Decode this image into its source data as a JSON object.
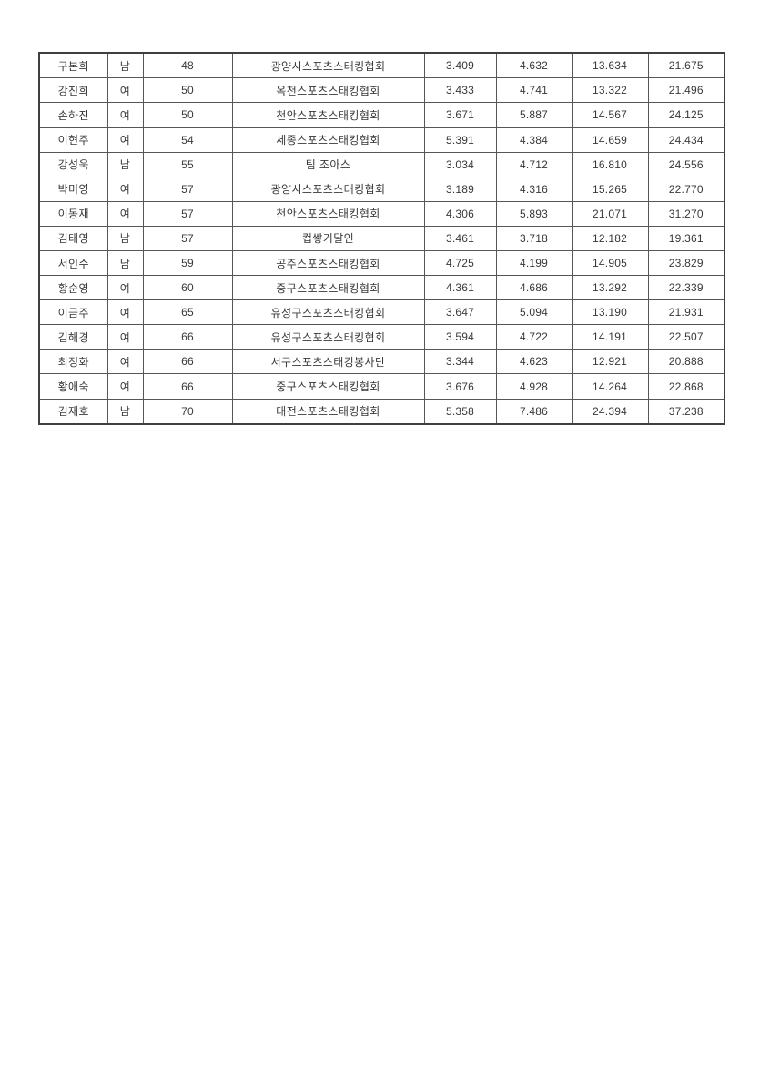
{
  "page": {
    "background_color": "#ffffff",
    "border_color": "#3f3f3f",
    "grid_color": "#565656",
    "text_color": "#383838"
  },
  "table": {
    "column_keys": [
      "name",
      "gender",
      "age",
      "team",
      "time1",
      "time2",
      "time3",
      "total"
    ],
    "rows": [
      {
        "name": "구본희",
        "gender": "남",
        "age": "48",
        "team": "광양시스포츠스태킹협회",
        "time1": "3.409",
        "time2": "4.632",
        "time3": "13.634",
        "total": "21.675"
      },
      {
        "name": "강진희",
        "gender": "여",
        "age": "50",
        "team": "옥천스포츠스태킹협회",
        "time1": "3.433",
        "time2": "4.741",
        "time3": "13.322",
        "total": "21.496"
      },
      {
        "name": "손하진",
        "gender": "여",
        "age": "50",
        "team": "천안스포츠스태킹협회",
        "time1": "3.671",
        "time2": "5.887",
        "time3": "14.567",
        "total": "24.125"
      },
      {
        "name": "이현주",
        "gender": "여",
        "age": "54",
        "team": "세종스포츠스태킹협회",
        "time1": "5.391",
        "time2": "4.384",
        "time3": "14.659",
        "total": "24.434"
      },
      {
        "name": "강성욱",
        "gender": "남",
        "age": "55",
        "team": "팀 조아스",
        "time1": "3.034",
        "time2": "4.712",
        "time3": "16.810",
        "total": "24.556"
      },
      {
        "name": "박미영",
        "gender": "여",
        "age": "57",
        "team": "광양시스포츠스태킹협회",
        "time1": "3.189",
        "time2": "4.316",
        "time3": "15.265",
        "total": "22.770"
      },
      {
        "name": "이동재",
        "gender": "여",
        "age": "57",
        "team": "천안스포츠스태킹협회",
        "time1": "4.306",
        "time2": "5.893",
        "time3": "21.071",
        "total": "31.270"
      },
      {
        "name": "김태영",
        "gender": "남",
        "age": "57",
        "team": "컵쌓기달인",
        "time1": "3.461",
        "time2": "3.718",
        "time3": "12.182",
        "total": "19.361"
      },
      {
        "name": "서인수",
        "gender": "남",
        "age": "59",
        "team": "공주스포츠스태킹협회",
        "time1": "4.725",
        "time2": "4.199",
        "time3": "14.905",
        "total": "23.829"
      },
      {
        "name": "황순영",
        "gender": "여",
        "age": "60",
        "team": "중구스포츠스태킹협회",
        "time1": "4.361",
        "time2": "4.686",
        "time3": "13.292",
        "total": "22.339"
      },
      {
        "name": "이금주",
        "gender": "여",
        "age": "65",
        "team": "유성구스포츠스태킹협회",
        "time1": "3.647",
        "time2": "5.094",
        "time3": "13.190",
        "total": "21.931"
      },
      {
        "name": "김해경",
        "gender": "여",
        "age": "66",
        "team": "유성구스포츠스태킹협회",
        "time1": "3.594",
        "time2": "4.722",
        "time3": "14.191",
        "total": "22.507"
      },
      {
        "name": "최정화",
        "gender": "여",
        "age": "66",
        "team": "서구스포츠스태킹봉사단",
        "time1": "3.344",
        "time2": "4.623",
        "time3": "12.921",
        "total": "20.888"
      },
      {
        "name": "황애숙",
        "gender": "여",
        "age": "66",
        "team": "중구스포츠스태킹협회",
        "time1": "3.676",
        "time2": "4.928",
        "time3": "14.264",
        "total": "22.868"
      },
      {
        "name": "김재호",
        "gender": "남",
        "age": "70",
        "team": "대전스포츠스태킹협회",
        "time1": "5.358",
        "time2": "7.486",
        "time3": "24.394",
        "total": "37.238"
      }
    ]
  }
}
